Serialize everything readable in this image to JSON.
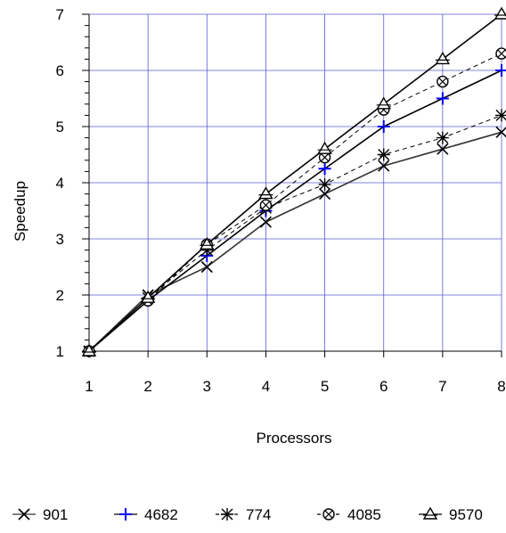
{
  "chart_data": {
    "type": "line",
    "title": "",
    "xlabel": "Processors",
    "ylabel": "Speedup",
    "x": [
      1,
      2,
      3,
      4,
      5,
      6,
      7,
      8
    ],
    "xlim": [
      1,
      8
    ],
    "ylim": [
      1,
      7
    ],
    "xticks": [
      "1",
      "2",
      "3",
      "4",
      "5",
      "6",
      "7",
      "8"
    ],
    "yticks": [
      "1",
      "2",
      "3",
      "4",
      "5",
      "6",
      "7"
    ],
    "grid": true,
    "legend_position": "bottom",
    "series": [
      {
        "name": "901",
        "marker": "x",
        "line": "solid",
        "line_color": "#333333",
        "marker_color": "#000000",
        "values": [
          1.0,
          2.0,
          2.5,
          3.3,
          3.8,
          4.3,
          4.6,
          4.9
        ]
      },
      {
        "name": "4682",
        "marker": "plus",
        "line": "solid",
        "line_color": "#000000",
        "marker_color": "#0000ff",
        "values": [
          1.0,
          1.9,
          2.7,
          3.5,
          4.25,
          5.0,
          5.5,
          6.0
        ]
      },
      {
        "name": "774",
        "marker": "star",
        "line": "dashed",
        "line_color": "#000000",
        "marker_color": "#000000",
        "values": [
          1.0,
          1.95,
          2.8,
          3.55,
          3.97,
          4.5,
          4.8,
          5.2
        ]
      },
      {
        "name": "4085",
        "marker": "otimes",
        "line": "dashed",
        "line_color": "#000000",
        "marker_color": "#000000",
        "values": [
          1.0,
          1.9,
          2.9,
          3.6,
          4.45,
          5.3,
          5.8,
          6.3
        ]
      },
      {
        "name": "9570",
        "marker": "triangle",
        "line": "solid",
        "line_color": "#000000",
        "marker_color": "#000000",
        "values": [
          1.0,
          1.95,
          2.9,
          3.8,
          4.6,
          5.4,
          6.2,
          7.0
        ]
      }
    ]
  }
}
